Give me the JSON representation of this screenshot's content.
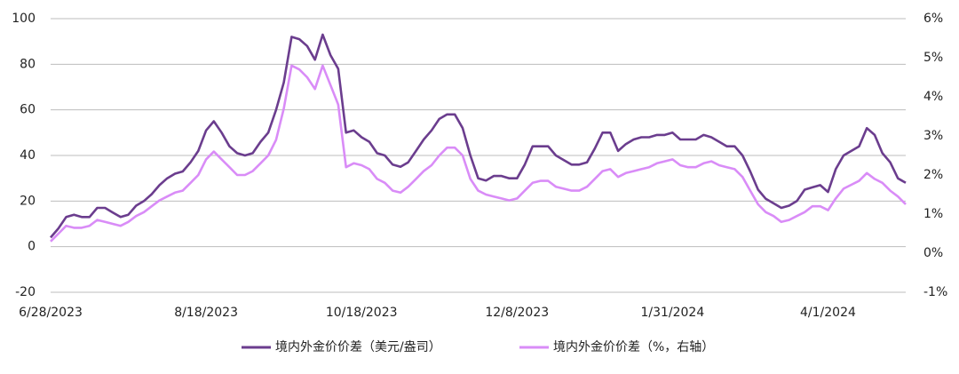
{
  "chart_data": {
    "type": "line",
    "categories": [
      "6/28/2023",
      null,
      null,
      null,
      null,
      null,
      null,
      null,
      null,
      null,
      null,
      null,
      null,
      null,
      null,
      null,
      null,
      null,
      null,
      null,
      "8/18/2023",
      null,
      null,
      null,
      null,
      null,
      null,
      null,
      null,
      null,
      null,
      null,
      null,
      null,
      null,
      null,
      null,
      null,
      null,
      null,
      "10/18/2023",
      null,
      null,
      null,
      null,
      null,
      null,
      null,
      null,
      null,
      null,
      null,
      null,
      null,
      null,
      null,
      null,
      null,
      null,
      null,
      "12/8/2023",
      null,
      null,
      null,
      null,
      null,
      null,
      null,
      null,
      null,
      null,
      null,
      null,
      null,
      null,
      null,
      null,
      null,
      null,
      null,
      "1/31/2024",
      null,
      null,
      null,
      null,
      null,
      null,
      null,
      null,
      null,
      null,
      null,
      null,
      null,
      null,
      null,
      null,
      null,
      null,
      null,
      "4/1/2024",
      null,
      null,
      null,
      null,
      null,
      null,
      null,
      null,
      null,
      null
    ],
    "series": [
      {
        "name": "境内外金价价差（美元/盎司）",
        "color": "#6b3d8e",
        "values": [
          4,
          8,
          13,
          14,
          13,
          13,
          17,
          17,
          15,
          13,
          14,
          18,
          20,
          23,
          27,
          30,
          32,
          33,
          37,
          42,
          51,
          55,
          50,
          44,
          41,
          40,
          41,
          46,
          50,
          60,
          72,
          92,
          91,
          88,
          82,
          93,
          84,
          78,
          50,
          51,
          48,
          46,
          41,
          40,
          36,
          35,
          37,
          42,
          47,
          51,
          56,
          58,
          58,
          52,
          40,
          30,
          29,
          31,
          31,
          30,
          30,
          36,
          44,
          44,
          44,
          40,
          38,
          36,
          36,
          37,
          43,
          50,
          50,
          42,
          45,
          47,
          48,
          48,
          49,
          49,
          50,
          47,
          47,
          47,
          49,
          48,
          46,
          44,
          44,
          40,
          33,
          25,
          21,
          19,
          17,
          18,
          20,
          25,
          26,
          27,
          24,
          34,
          40,
          42,
          44,
          52,
          49,
          41,
          37,
          30,
          28
        ]
      },
      {
        "name": "境内外金价价差（%，右轴）",
        "color": "#d98cf7",
        "axis": "y2",
        "values": [
          0.3,
          0.5,
          0.7,
          0.65,
          0.65,
          0.7,
          0.85,
          0.8,
          0.75,
          0.7,
          0.8,
          0.95,
          1.05,
          1.2,
          1.35,
          1.45,
          1.55,
          1.6,
          1.8,
          2.0,
          2.4,
          2.6,
          2.4,
          2.2,
          2.0,
          2.0,
          2.1,
          2.3,
          2.5,
          2.9,
          3.7,
          4.8,
          4.7,
          4.5,
          4.2,
          4.8,
          4.3,
          3.8,
          2.2,
          2.3,
          2.25,
          2.15,
          1.9,
          1.8,
          1.6,
          1.55,
          1.7,
          1.9,
          2.1,
          2.25,
          2.5,
          2.7,
          2.7,
          2.5,
          1.9,
          1.6,
          1.5,
          1.45,
          1.4,
          1.35,
          1.4,
          1.6,
          1.8,
          1.85,
          1.85,
          1.7,
          1.65,
          1.6,
          1.6,
          1.7,
          1.9,
          2.1,
          2.15,
          1.95,
          2.05,
          2.1,
          2.15,
          2.2,
          2.3,
          2.35,
          2.4,
          2.25,
          2.2,
          2.2,
          2.3,
          2.35,
          2.25,
          2.2,
          2.15,
          1.95,
          1.6,
          1.25,
          1.05,
          0.95,
          0.8,
          0.85,
          0.95,
          1.05,
          1.2,
          1.2,
          1.1,
          1.4,
          1.65,
          1.75,
          1.85,
          2.05,
          1.9,
          1.8,
          1.6,
          1.45,
          1.25
        ]
      }
    ],
    "ylim": [
      -20,
      100
    ],
    "yticks": [
      -20,
      0,
      20,
      40,
      60,
      80,
      100
    ],
    "y2lim": [
      -1,
      6
    ],
    "y2ticks": [
      {
        "value": -1,
        "label": "-1%"
      },
      {
        "value": 0,
        "label": "0%"
      },
      {
        "value": 1,
        "label": "1%"
      },
      {
        "value": 2,
        "label": "2%"
      },
      {
        "value": 3,
        "label": "3%"
      },
      {
        "value": 4,
        "label": "4%"
      },
      {
        "value": 5,
        "label": "5%"
      },
      {
        "value": 6,
        "label": "6%"
      }
    ],
    "grid": true,
    "legend": "bottom"
  }
}
